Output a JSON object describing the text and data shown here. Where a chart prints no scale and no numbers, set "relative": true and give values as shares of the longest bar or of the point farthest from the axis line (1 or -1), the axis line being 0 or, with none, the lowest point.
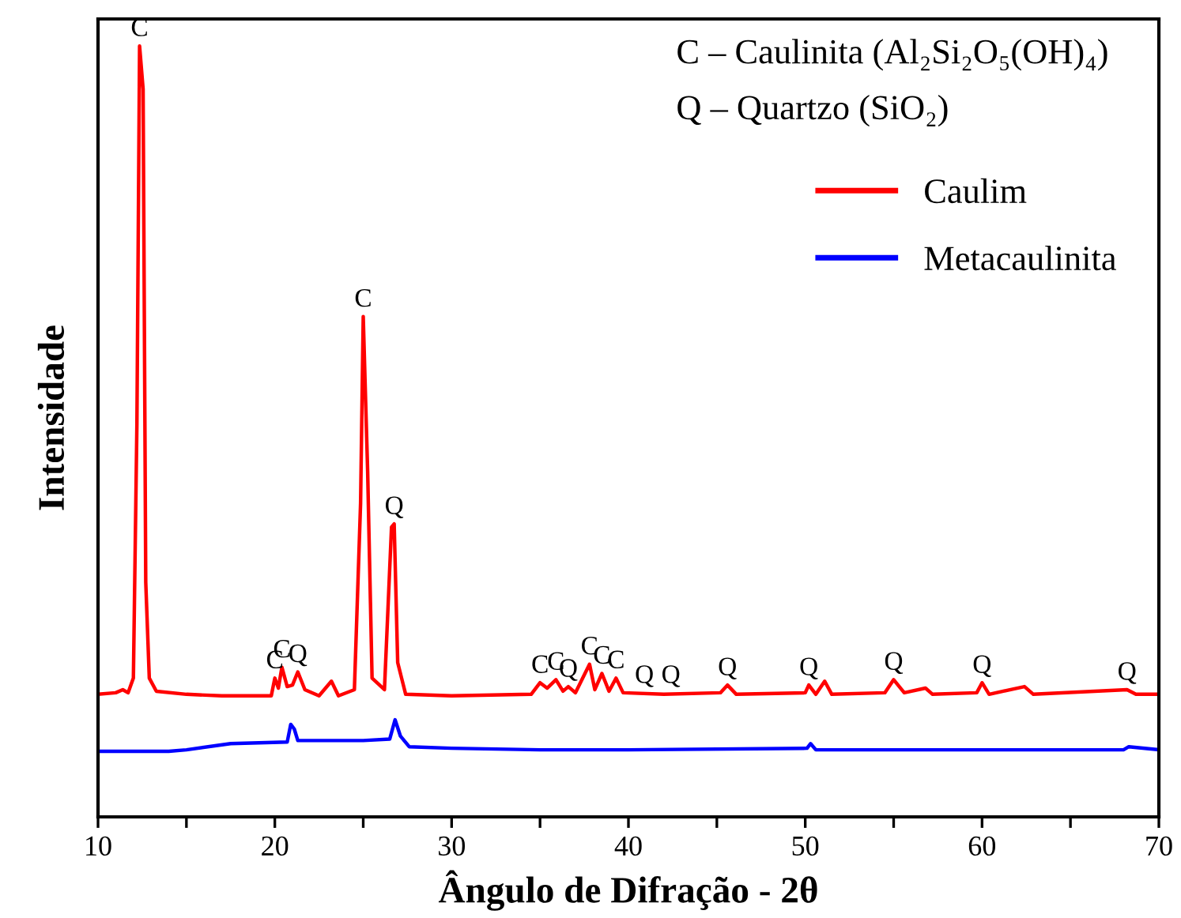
{
  "chart_data": {
    "type": "line",
    "relative": true,
    "xlabel": "Ângulo de Difração - 2θ",
    "ylabel": "Intensidade",
    "xlim": [
      10,
      70
    ],
    "xticks": [
      10,
      {
        "value": 15,
        "label": null
      },
      20,
      {
        "value": 25,
        "label": null
      },
      30,
      {
        "value": 35,
        "label": null
      },
      40,
      {
        "value": 45,
        "label": null
      },
      50,
      {
        "value": 55,
        "label": null
      },
      60,
      {
        "value": 65,
        "label": null
      },
      70
    ],
    "legend": "top right",
    "grid": false,
    "marker": "none",
    "line_style": "solid",
    "series": [
      {
        "name": "Caulim",
        "color": "#ff0000",
        "x": [
          10.0,
          11.0,
          11.4,
          11.7,
          12.0,
          12.2,
          12.35,
          12.55,
          12.7,
          12.9,
          13.3,
          15,
          17,
          19.8,
          20.0,
          20.2,
          20.4,
          20.7,
          21.0,
          21.3,
          21.7,
          22.5,
          23.2,
          23.6,
          24.5,
          24.85,
          25.0,
          25.25,
          25.5,
          26.2,
          26.6,
          26.75,
          26.95,
          27.4,
          30,
          34.5,
          35.0,
          35.4,
          35.9,
          36.3,
          36.6,
          37.0,
          37.8,
          38.1,
          38.5,
          38.9,
          39.3,
          39.7,
          42,
          45.2,
          45.6,
          46.1,
          50.0,
          50.2,
          50.6,
          51.1,
          51.5,
          54.5,
          55.0,
          55.6,
          56.8,
          57.2,
          59.7,
          60.0,
          60.4,
          62.4,
          62.9,
          68.2,
          68.7,
          70
        ],
        "values": [
          0.159,
          0.161,
          0.165,
          0.161,
          0.18,
          0.51,
          1.0,
          0.944,
          0.304,
          0.18,
          0.163,
          0.159,
          0.157,
          0.157,
          0.18,
          0.167,
          0.194,
          0.169,
          0.171,
          0.188,
          0.165,
          0.157,
          0.176,
          0.157,
          0.165,
          0.407,
          0.649,
          0.448,
          0.18,
          0.165,
          0.376,
          0.38,
          0.2,
          0.159,
          0.157,
          0.159,
          0.174,
          0.167,
          0.178,
          0.163,
          0.169,
          0.161,
          0.198,
          0.165,
          0.186,
          0.163,
          0.18,
          0.161,
          0.159,
          0.161,
          0.171,
          0.159,
          0.161,
          0.171,
          0.159,
          0.176,
          0.159,
          0.161,
          0.178,
          0.161,
          0.167,
          0.159,
          0.161,
          0.174,
          0.159,
          0.169,
          0.159,
          0.165,
          0.159,
          0.159
        ]
      },
      {
        "name": "Metacaulinita",
        "color": "#0000ff",
        "x": [
          10,
          14,
          15,
          17.5,
          20.7,
          20.9,
          21.1,
          21.3,
          25,
          26.5,
          26.8,
          27.1,
          27.6,
          30,
          35,
          40,
          50.1,
          50.3,
          50.6,
          68,
          68.3,
          70
        ],
        "values": [
          0.085,
          0.085,
          0.087,
          0.095,
          0.097,
          0.12,
          0.114,
          0.099,
          0.099,
          0.101,
          0.126,
          0.105,
          0.091,
          0.089,
          0.087,
          0.087,
          0.089,
          0.095,
          0.087,
          0.087,
          0.091,
          0.087
        ]
      }
    ],
    "annotations": [
      "C – Caulinita (Al₂Si₂O₅(OH)₄)",
      "Q – Quartzo (SiO₂)",
      {
        "text": "C",
        "x": 12.35,
        "y": 1.0
      },
      {
        "text": "C",
        "x": 20.0,
        "y": 0.18
      },
      {
        "text": "C",
        "x": 20.4,
        "y": 0.194
      },
      {
        "text": "Q",
        "x": 21.3,
        "y": 0.188
      },
      {
        "text": "C",
        "x": 25.0,
        "y": 0.649
      },
      {
        "text": "Q",
        "x": 26.75,
        "y": 0.38
      },
      {
        "text": "C",
        "x": 35.0,
        "y": 0.174
      },
      {
        "text": "C",
        "x": 35.9,
        "y": 0.178
      },
      {
        "text": "Q",
        "x": 36.6,
        "y": 0.169
      },
      {
        "text": "C",
        "x": 37.8,
        "y": 0.198
      },
      {
        "text": "C",
        "x": 38.5,
        "y": 0.186
      },
      {
        "text": "C",
        "x": 39.3,
        "y": 0.18
      },
      {
        "text": "Q",
        "x": 40.9,
        "y": 0.161
      },
      {
        "text": "Q",
        "x": 42.4,
        "y": 0.161
      },
      {
        "text": "Q",
        "x": 45.6,
        "y": 0.171
      },
      {
        "text": "Q",
        "x": 50.2,
        "y": 0.171
      },
      {
        "text": "Q",
        "x": 55.0,
        "y": 0.178
      },
      {
        "text": "Q",
        "x": 60.0,
        "y": 0.174
      },
      {
        "text": "Q",
        "x": 68.2,
        "y": 0.165
      }
    ]
  }
}
